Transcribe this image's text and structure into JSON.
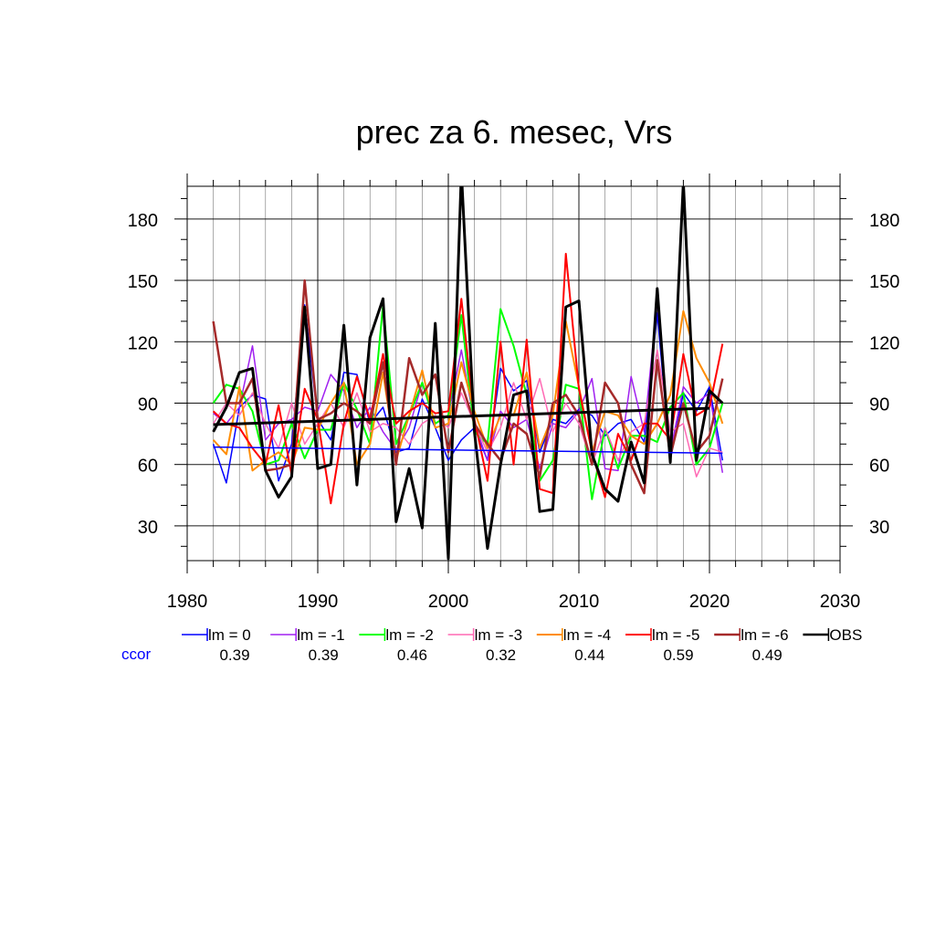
{
  "chart_data": {
    "type": "line",
    "title": "prec za 6. mesec, Vrs",
    "xlabel": "",
    "ylabel": "",
    "xlim": [
      1980,
      2030
    ],
    "ylim": [
      13,
      196
    ],
    "xticks": [
      1980,
      1990,
      2000,
      2010,
      2020,
      2030
    ],
    "yticks": [
      30,
      60,
      90,
      120,
      150,
      180
    ],
    "x": [
      1982,
      1983,
      1984,
      1985,
      1986,
      1987,
      1988,
      1989,
      1990,
      1991,
      1992,
      1993,
      1994,
      1995,
      1996,
      1997,
      1998,
      1999,
      2000,
      2001,
      2002,
      2003,
      2004,
      2005,
      2006,
      2007,
      2008,
      2009,
      2010,
      2011,
      2012,
      2013,
      2014,
      2015,
      2016,
      2017,
      2018,
      2019,
      2020,
      2021
    ],
    "grid": true,
    "legend_position": "below plot",
    "series": [
      {
        "name": "lm = 0",
        "color": "#0000ff",
        "width": 1.5,
        "values": [
          70,
          51,
          88,
          94,
          92,
          52,
          70,
          138,
          82,
          72,
          105,
          104,
          80,
          88,
          66,
          68,
          92,
          78,
          62,
          72,
          78,
          62,
          107,
          96,
          101,
          66,
          82,
          80,
          87,
          84,
          74,
          80,
          82,
          71,
          134,
          62,
          95,
          86,
          98,
          62
        ]
      },
      {
        "name": "lm = -1",
        "color": "#a020f0",
        "width": 1.5,
        "values": [
          85,
          80,
          88,
          118,
          72,
          80,
          82,
          88,
          86,
          104,
          96,
          78,
          88,
          76,
          67,
          78,
          100,
          80,
          84,
          116,
          80,
          62,
          86,
          78,
          82,
          58,
          80,
          78,
          86,
          102,
          58,
          57,
          103,
          76,
          140,
          66,
          98,
          90,
          95,
          56
        ]
      },
      {
        "name": "lm = -2",
        "color": "#00ff00",
        "width": 2,
        "values": [
          90,
          99,
          97,
          86,
          60,
          62,
          80,
          63,
          77,
          77,
          100,
          87,
          70,
          138,
          70,
          84,
          100,
          80,
          84,
          133,
          76,
          70,
          136,
          118,
          94,
          52,
          62,
          99,
          97,
          43,
          78,
          58,
          74,
          74,
          71,
          88,
          95,
          60,
          68,
          90
        ]
      },
      {
        "name": "lm = -3",
        "color": "#ff69b4",
        "width": 1.5,
        "values": [
          80,
          90,
          84,
          95,
          80,
          68,
          90,
          70,
          80,
          90,
          78,
          95,
          76,
          80,
          78,
          70,
          80,
          84,
          78,
          95,
          80,
          66,
          78,
          100,
          82,
          102,
          76,
          90,
          80,
          60,
          78,
          62,
          76,
          80,
          116,
          76,
          80,
          54,
          68,
          66
        ]
      },
      {
        "name": "lm = -4",
        "color": "#ff8c00",
        "width": 2,
        "values": [
          72,
          65,
          98,
          57,
          62,
          66,
          60,
          78,
          77,
          90,
          100,
          60,
          70,
          105,
          62,
          84,
          106,
          78,
          80,
          110,
          86,
          68,
          84,
          84,
          105,
          68,
          84,
          130,
          98,
          66,
          86,
          84,
          74,
          70,
          80,
          94,
          135,
          112,
          100,
          80
        ]
      },
      {
        "name": "lm = -5",
        "color": "#ff0000",
        "width": 2,
        "values": [
          86,
          80,
          78,
          68,
          60,
          89,
          55,
          97,
          82,
          41,
          80,
          103,
          82,
          114,
          80,
          86,
          90,
          85,
          86,
          141,
          82,
          52,
          120,
          60,
          121,
          48,
          46,
          163,
          97,
          66,
          44,
          75,
          62,
          80,
          80,
          72,
          114,
          84,
          88,
          119
        ]
      },
      {
        "name": "lm = -6",
        "color": "#a52a2a",
        "width": 2.5,
        "values": [
          130,
          90,
          90,
          102,
          57,
          58,
          60,
          150,
          82,
          85,
          90,
          86,
          80,
          110,
          60,
          112,
          94,
          104,
          66,
          100,
          80,
          70,
          62,
          80,
          75,
          54,
          90,
          94,
          84,
          60,
          100,
          90,
          60,
          46,
          111,
          64,
          90,
          66,
          74,
          102
        ]
      },
      {
        "name": "OBS",
        "color": "#000000",
        "width": 3,
        "values": [
          76,
          88,
          105,
          107,
          57,
          44,
          54,
          137,
          58,
          60,
          128,
          50,
          122,
          141,
          32,
          58,
          29,
          129,
          14,
          203,
          76,
          19,
          60,
          94,
          96,
          37,
          38,
          137,
          140,
          65,
          48,
          42,
          71,
          51,
          146,
          61,
          198,
          62,
          96,
          90
        ]
      }
    ],
    "trend": {
      "color": "#000000",
      "x": [
        1982,
        2020
      ],
      "y": [
        79.5,
        87.5
      ]
    },
    "lm0_trend": {
      "color": "#0000ff",
      "x": [
        1982,
        2021
      ],
      "y": [
        68.5,
        65.5
      ]
    },
    "ccor_label": "ccor",
    "ccor_color": "#0000ff",
    "ccor": [
      "0.39",
      "0.39",
      "0.46",
      "0.32",
      "0.44",
      "0.59",
      "0.49"
    ]
  }
}
